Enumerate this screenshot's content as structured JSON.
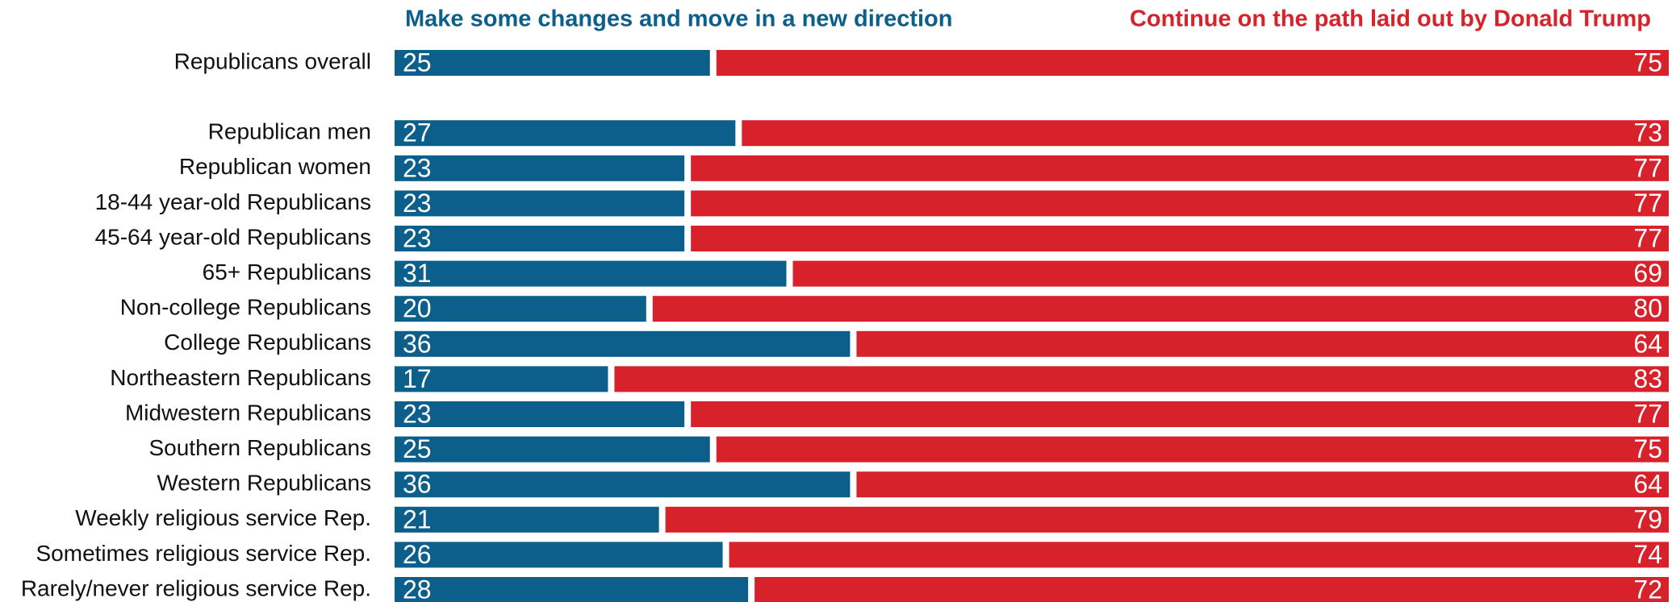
{
  "chart_data": {
    "type": "stacked-bar",
    "categories": [
      "Republicans overall",
      null,
      "Republican men",
      "Republican women",
      "18-44 year-old Republicans",
      "45-64 year-old Republicans",
      "65+ Republicans",
      "Non-college Republicans",
      "College Republicans",
      "Northeastern Republicans",
      "Midwestern Republicans",
      "Southern Republicans",
      "Western Republicans",
      "Weekly religious service Rep.",
      "Sometimes religious service Rep.",
      "Rarely/never religious service Rep."
    ],
    "series": [
      {
        "name": "Make some changes and move in a new direction",
        "color": "#0b5f8a",
        "values": [
          25,
          null,
          27,
          23,
          23,
          23,
          31,
          20,
          36,
          17,
          23,
          25,
          36,
          21,
          26,
          28
        ]
      },
      {
        "name": "Continue on the path laid out by Donald Trump",
        "color": "#d7222b",
        "values": [
          75,
          null,
          73,
          77,
          77,
          77,
          69,
          80,
          64,
          83,
          77,
          75,
          64,
          79,
          74,
          72
        ]
      }
    ],
    "xlim": [
      0,
      100
    ]
  }
}
